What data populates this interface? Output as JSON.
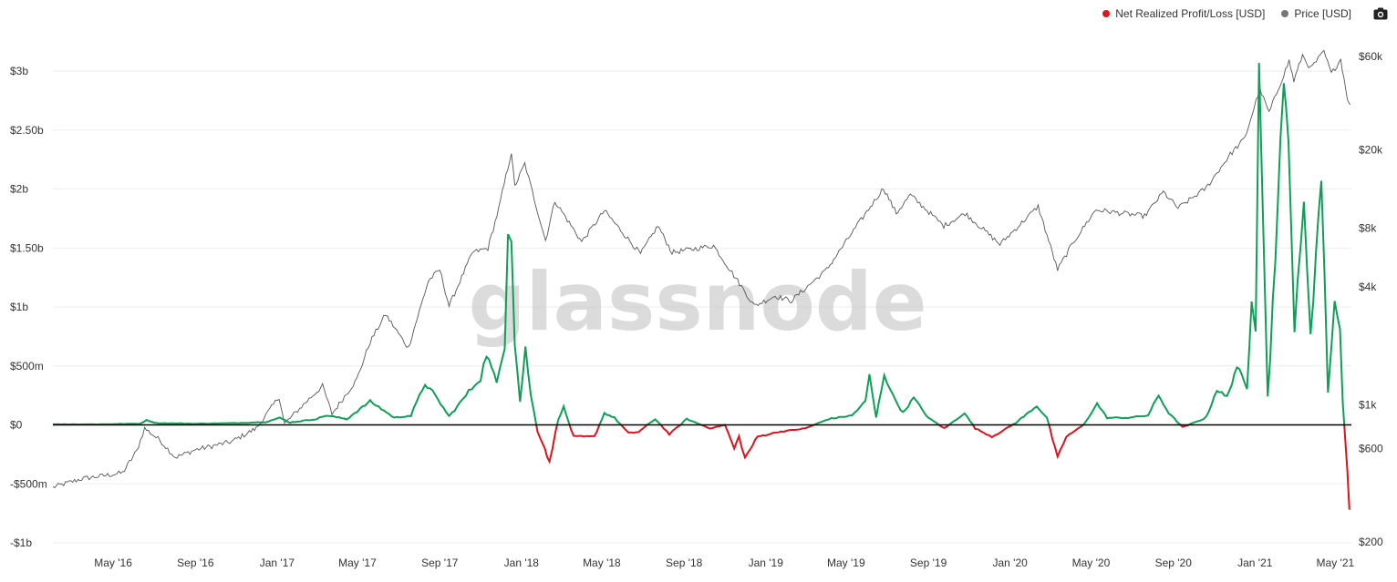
{
  "legend": {
    "items": [
      {
        "label": "Net Realized Profit/Loss [USD]",
        "color": "#e0161b"
      },
      {
        "label": "Price [USD]",
        "color": "#777777"
      }
    ],
    "camera_icon": "camera-icon"
  },
  "watermark": "glassnode",
  "colors": {
    "positive": "#0e9f57",
    "negative": "#d8141c",
    "price": "#555555",
    "zero_line": "#000000",
    "grid": "#eeeeee"
  },
  "chart_data": {
    "type": "line",
    "x_range": [
      "2016-02-01",
      "2021-05-25"
    ],
    "x_ticks": [
      {
        "label": "May '16",
        "date": "2016-05-01"
      },
      {
        "label": "Sep '16",
        "date": "2016-09-01"
      },
      {
        "label": "Jan '17",
        "date": "2017-01-01"
      },
      {
        "label": "May '17",
        "date": "2017-05-01"
      },
      {
        "label": "Sep '17",
        "date": "2017-09-01"
      },
      {
        "label": "Jan '18",
        "date": "2018-01-01"
      },
      {
        "label": "May '18",
        "date": "2018-05-01"
      },
      {
        "label": "Sep '18",
        "date": "2018-09-01"
      },
      {
        "label": "Jan '19",
        "date": "2019-01-01"
      },
      {
        "label": "May '19",
        "date": "2019-05-01"
      },
      {
        "label": "Sep '19",
        "date": "2019-09-01"
      },
      {
        "label": "Jan '20",
        "date": "2020-01-01"
      },
      {
        "label": "May '20",
        "date": "2020-05-01"
      },
      {
        "label": "Sep '20",
        "date": "2020-09-01"
      },
      {
        "label": "Jan '21",
        "date": "2021-01-01"
      },
      {
        "label": "May '21",
        "date": "2021-05-01"
      }
    ],
    "y_left": {
      "range": [
        -1000000000,
        3500000000
      ],
      "ticks": [
        {
          "label": "$3b",
          "value": 3000000000
        },
        {
          "label": "$2.50b",
          "value": 2500000000
        },
        {
          "label": "$2b",
          "value": 2000000000
        },
        {
          "label": "$1.50b",
          "value": 1500000000
        },
        {
          "label": "$1b",
          "value": 1000000000
        },
        {
          "label": "$500m",
          "value": 500000000
        },
        {
          "label": "$0",
          "value": 0
        },
        {
          "label": "-$500m",
          "value": -500000000
        },
        {
          "label": "-$1b",
          "value": -1000000000
        }
      ]
    },
    "y_right": {
      "scale": "log",
      "ticks": [
        {
          "label": "$60k",
          "value": 60000
        },
        {
          "label": "$20k",
          "value": 20000
        },
        {
          "label": "$8k",
          "value": 8000
        },
        {
          "label": "$4k",
          "value": 4000
        },
        {
          "label": "$1k",
          "value": 1000
        },
        {
          "label": "$600",
          "value": 600
        },
        {
          "label": "$200",
          "value": 200
        }
      ]
    },
    "series": [
      {
        "name": "Net Realized Profit/Loss [USD]",
        "axis": "left",
        "points": [
          [
            "2016-02-01",
            5000000
          ],
          [
            "2016-04-01",
            5000000
          ],
          [
            "2016-06-10",
            10000000
          ],
          [
            "2016-06-20",
            40000000
          ],
          [
            "2016-07-05",
            15000000
          ],
          [
            "2016-09-01",
            10000000
          ],
          [
            "2016-11-01",
            15000000
          ],
          [
            "2016-12-15",
            25000000
          ],
          [
            "2017-01-05",
            60000000
          ],
          [
            "2017-01-20",
            20000000
          ],
          [
            "2017-03-01",
            50000000
          ],
          [
            "2017-03-15",
            80000000
          ],
          [
            "2017-04-15",
            50000000
          ],
          [
            "2017-05-20",
            200000000
          ],
          [
            "2017-06-10",
            120000000
          ],
          [
            "2017-06-25",
            60000000
          ],
          [
            "2017-07-20",
            80000000
          ],
          [
            "2017-08-10",
            350000000
          ],
          [
            "2017-08-25",
            250000000
          ],
          [
            "2017-09-15",
            70000000
          ],
          [
            "2017-10-10",
            250000000
          ],
          [
            "2017-11-01",
            400000000
          ],
          [
            "2017-11-10",
            600000000
          ],
          [
            "2017-11-25",
            350000000
          ],
          [
            "2017-12-07",
            700000000
          ],
          [
            "2017-12-12",
            1680000000
          ],
          [
            "2017-12-17",
            1600000000
          ],
          [
            "2017-12-22",
            700000000
          ],
          [
            "2017-12-30",
            200000000
          ],
          [
            "2018-01-07",
            650000000
          ],
          [
            "2018-01-15",
            250000000
          ],
          [
            "2018-01-25",
            -50000000
          ],
          [
            "2018-02-05",
            -200000000
          ],
          [
            "2018-02-12",
            -320000000
          ],
          [
            "2018-02-25",
            50000000
          ],
          [
            "2018-03-05",
            150000000
          ],
          [
            "2018-03-20",
            -100000000
          ],
          [
            "2018-04-20",
            -100000000
          ],
          [
            "2018-05-05",
            100000000
          ],
          [
            "2018-05-20",
            60000000
          ],
          [
            "2018-06-10",
            -70000000
          ],
          [
            "2018-06-25",
            -60000000
          ],
          [
            "2018-07-20",
            50000000
          ],
          [
            "2018-08-10",
            -80000000
          ],
          [
            "2018-09-05",
            50000000
          ],
          [
            "2018-10-10",
            -30000000
          ],
          [
            "2018-11-01",
            0
          ],
          [
            "2018-11-15",
            -200000000
          ],
          [
            "2018-11-22",
            -100000000
          ],
          [
            "2018-12-01",
            -280000000
          ],
          [
            "2018-12-20",
            -100000000
          ],
          [
            "2019-01-20",
            -60000000
          ],
          [
            "2019-03-01",
            -30000000
          ],
          [
            "2019-04-05",
            50000000
          ],
          [
            "2019-05-10",
            80000000
          ],
          [
            "2019-05-30",
            200000000
          ],
          [
            "2019-06-05",
            420000000
          ],
          [
            "2019-06-15",
            60000000
          ],
          [
            "2019-06-27",
            430000000
          ],
          [
            "2019-07-10",
            250000000
          ],
          [
            "2019-07-25",
            100000000
          ],
          [
            "2019-08-10",
            230000000
          ],
          [
            "2019-09-01",
            60000000
          ],
          [
            "2019-09-25",
            -30000000
          ],
          [
            "2019-10-25",
            100000000
          ],
          [
            "2019-11-10",
            -30000000
          ],
          [
            "2019-12-05",
            -100000000
          ],
          [
            "2019-12-18",
            -60000000
          ],
          [
            "2020-01-10",
            20000000
          ],
          [
            "2020-02-10",
            160000000
          ],
          [
            "2020-02-25",
            60000000
          ],
          [
            "2020-03-12",
            -280000000
          ],
          [
            "2020-03-25",
            -100000000
          ],
          [
            "2020-04-20",
            0
          ],
          [
            "2020-05-10",
            180000000
          ],
          [
            "2020-05-25",
            60000000
          ],
          [
            "2020-06-25",
            60000000
          ],
          [
            "2020-07-25",
            80000000
          ],
          [
            "2020-08-10",
            250000000
          ],
          [
            "2020-08-25",
            100000000
          ],
          [
            "2020-09-15",
            -20000000
          ],
          [
            "2020-10-20",
            60000000
          ],
          [
            "2020-11-05",
            300000000
          ],
          [
            "2020-11-20",
            230000000
          ],
          [
            "2020-12-05",
            500000000
          ],
          [
            "2020-12-20",
            300000000
          ],
          [
            "2020-12-27",
            1100000000
          ],
          [
            "2021-01-02",
            900000000
          ],
          [
            "2021-01-07",
            3200000000
          ],
          [
            "2021-01-12",
            2000000000
          ],
          [
            "2021-01-20",
            200000000
          ],
          [
            "2021-02-08",
            2300000000
          ],
          [
            "2021-02-13",
            2800000000
          ],
          [
            "2021-02-20",
            2500000000
          ],
          [
            "2021-03-01",
            800000000
          ],
          [
            "2021-03-15",
            1850000000
          ],
          [
            "2021-03-25",
            800000000
          ],
          [
            "2021-04-10",
            2100000000
          ],
          [
            "2021-04-20",
            300000000
          ],
          [
            "2021-04-30",
            1050000000
          ],
          [
            "2021-05-08",
            800000000
          ],
          [
            "2021-05-12",
            200000000
          ],
          [
            "2021-05-15",
            -50000000
          ],
          [
            "2021-05-19",
            -400000000
          ],
          [
            "2021-05-22",
            -720000000
          ]
        ]
      },
      {
        "name": "Price [USD]",
        "axis": "right",
        "points": [
          [
            "2016-02-01",
            380
          ],
          [
            "2016-03-15",
            420
          ],
          [
            "2016-05-15",
            450
          ],
          [
            "2016-06-05",
            580
          ],
          [
            "2016-06-17",
            760
          ],
          [
            "2016-07-10",
            660
          ],
          [
            "2016-08-02",
            540
          ],
          [
            "2016-09-01",
            590
          ],
          [
            "2016-10-25",
            650
          ],
          [
            "2016-12-01",
            760
          ],
          [
            "2017-01-04",
            1100
          ],
          [
            "2017-01-12",
            800
          ],
          [
            "2017-02-15",
            1050
          ],
          [
            "2017-03-10",
            1250
          ],
          [
            "2017-03-24",
            900
          ],
          [
            "2017-04-30",
            1350
          ],
          [
            "2017-05-20",
            2100
          ],
          [
            "2017-06-12",
            2900
          ],
          [
            "2017-07-16",
            1950
          ],
          [
            "2017-08-15",
            4300
          ],
          [
            "2017-09-01",
            4900
          ],
          [
            "2017-09-15",
            3200
          ],
          [
            "2017-10-20",
            6000
          ],
          [
            "2017-11-12",
            6300
          ],
          [
            "2017-11-28",
            10000
          ],
          [
            "2017-12-17",
            19500
          ],
          [
            "2017-12-22",
            13000
          ],
          [
            "2018-01-06",
            17000
          ],
          [
            "2018-02-06",
            6900
          ],
          [
            "2018-02-20",
            11000
          ],
          [
            "2018-04-01",
            6800
          ],
          [
            "2018-05-05",
            9800
          ],
          [
            "2018-06-28",
            5900
          ],
          [
            "2018-07-24",
            8200
          ],
          [
            "2018-08-14",
            6000
          ],
          [
            "2018-10-15",
            6500
          ],
          [
            "2018-11-20",
            4300
          ],
          [
            "2018-12-15",
            3200
          ],
          [
            "2019-01-15",
            3600
          ],
          [
            "2019-02-08",
            3400
          ],
          [
            "2019-04-02",
            4900
          ],
          [
            "2019-05-15",
            8000
          ],
          [
            "2019-06-26",
            12800
          ],
          [
            "2019-07-15",
            9500
          ],
          [
            "2019-08-05",
            11800
          ],
          [
            "2019-09-24",
            8200
          ],
          [
            "2019-10-26",
            9500
          ],
          [
            "2019-12-17",
            6600
          ],
          [
            "2020-02-12",
            10300
          ],
          [
            "2020-03-12",
            4900
          ],
          [
            "2020-04-05",
            6800
          ],
          [
            "2020-05-08",
            9900
          ],
          [
            "2020-07-20",
            9200
          ],
          [
            "2020-08-17",
            12200
          ],
          [
            "2020-09-08",
            10100
          ],
          [
            "2020-10-20",
            12800
          ],
          [
            "2020-11-25",
            19000
          ],
          [
            "2020-12-17",
            23000
          ],
          [
            "2021-01-08",
            41000
          ],
          [
            "2021-01-22",
            31000
          ],
          [
            "2021-02-21",
            57000
          ],
          [
            "2021-02-28",
            45000
          ],
          [
            "2021-03-13",
            61000
          ],
          [
            "2021-03-25",
            52000
          ],
          [
            "2021-04-14",
            63500
          ],
          [
            "2021-04-25",
            49000
          ],
          [
            "2021-05-09",
            58000
          ],
          [
            "2021-05-19",
            37000
          ],
          [
            "2021-05-23",
            34000
          ]
        ]
      }
    ]
  }
}
